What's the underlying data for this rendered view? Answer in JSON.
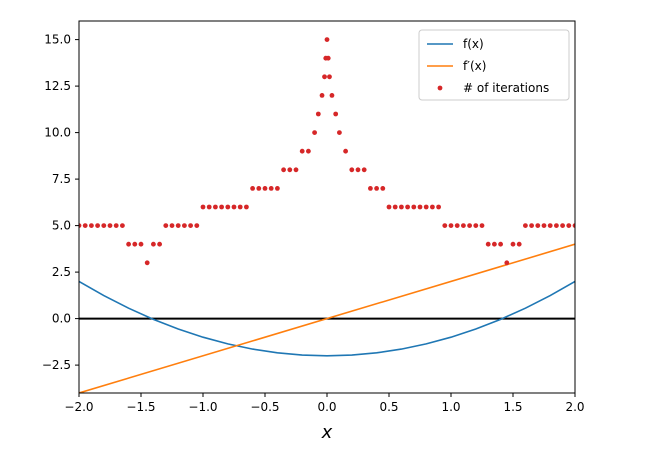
{
  "chart_data": {
    "type": "line",
    "title": "",
    "xlabel": "x",
    "ylabel": "",
    "xlim": [
      -2.0,
      2.0
    ],
    "ylim": [
      -4.0,
      16.0
    ],
    "x_ticks": [
      -2.0,
      -1.5,
      -1.0,
      -0.5,
      0.0,
      0.5,
      1.0,
      1.5,
      2.0
    ],
    "x_tick_labels": [
      "−2.0",
      "−1.5",
      "−1.0",
      "−0.5",
      "0.0",
      "0.5",
      "1.0",
      "1.5",
      "2.0"
    ],
    "y_ticks": [
      -2.5,
      0.0,
      2.5,
      5.0,
      7.5,
      10.0,
      12.5,
      15.0
    ],
    "y_tick_labels": [
      "−2.5",
      "0.0",
      "2.5",
      "5.0",
      "7.5",
      "10.0",
      "12.5",
      "15.0"
    ],
    "grid": false,
    "legend_position": "top-right",
    "legend": [
      "f(x)",
      "f′(x)",
      "# of iterations"
    ],
    "series": [
      {
        "name": "f(x)",
        "kind": "line",
        "color": "#1f77b4",
        "x": [
          -2.0,
          -1.8,
          -1.6,
          -1.4,
          -1.2,
          -1.0,
          -0.8,
          -0.6,
          -0.4,
          -0.2,
          0.0,
          0.2,
          0.4,
          0.6,
          0.8,
          1.0,
          1.2,
          1.4,
          1.6,
          1.8,
          2.0
        ],
        "y": [
          2.0,
          1.24,
          0.56,
          -0.04,
          -0.56,
          -1.0,
          -1.36,
          -1.64,
          -1.84,
          -1.96,
          -2.0,
          -1.96,
          -1.84,
          -1.64,
          -1.36,
          -1.0,
          -0.56,
          -0.04,
          0.56,
          1.24,
          2.0
        ]
      },
      {
        "name": "f′(x)",
        "kind": "line",
        "color": "#ff7f0e",
        "x": [
          -2.0,
          2.0
        ],
        "y": [
          -4.0,
          4.0
        ]
      },
      {
        "name": "# of iterations",
        "kind": "scatter",
        "color": "#d62728",
        "x": [
          -2.0,
          -1.95,
          -1.9,
          -1.85,
          -1.8,
          -1.75,
          -1.7,
          -1.65,
          -1.6,
          -1.55,
          -1.5,
          -1.45,
          -1.4,
          -1.35,
          -1.3,
          -1.25,
          -1.2,
          -1.15,
          -1.1,
          -1.05,
          -1.0,
          -0.95,
          -0.9,
          -0.85,
          -0.8,
          -0.75,
          -0.7,
          -0.65,
          -0.6,
          -0.55,
          -0.5,
          -0.45,
          -0.4,
          -0.35,
          -0.3,
          -0.25,
          -0.2,
          -0.15,
          -0.1,
          -0.07,
          -0.04,
          -0.02,
          -0.01,
          0.0,
          0.01,
          0.02,
          0.04,
          0.07,
          0.1,
          0.15,
          0.2,
          0.25,
          0.3,
          0.35,
          0.4,
          0.45,
          0.5,
          0.55,
          0.6,
          0.65,
          0.7,
          0.75,
          0.8,
          0.85,
          0.9,
          0.95,
          1.0,
          1.05,
          1.1,
          1.15,
          1.2,
          1.25,
          1.3,
          1.35,
          1.4,
          1.45,
          1.5,
          1.55,
          1.6,
          1.65,
          1.7,
          1.75,
          1.8,
          1.85,
          1.9,
          1.95,
          2.0
        ],
        "y": [
          5,
          5,
          5,
          5,
          5,
          5,
          5,
          5,
          4,
          4,
          4,
          3,
          4,
          4,
          5,
          5,
          5,
          5,
          5,
          5,
          6,
          6,
          6,
          6,
          6,
          6,
          6,
          6,
          7,
          7,
          7,
          7,
          7,
          8,
          8,
          8,
          9,
          9,
          10,
          11,
          12,
          13,
          14,
          15,
          14,
          13,
          12,
          11,
          10,
          9,
          8,
          8,
          8,
          7,
          7,
          7,
          6,
          6,
          6,
          6,
          6,
          6,
          6,
          6,
          6,
          5,
          5,
          5,
          5,
          5,
          5,
          5,
          4,
          4,
          4,
          3,
          4,
          4,
          5,
          5,
          5,
          5,
          5,
          5,
          5,
          5,
          5
        ]
      }
    ],
    "reference_lines": [
      {
        "orientation": "horizontal",
        "y": 0.0,
        "color": "#000000"
      }
    ]
  }
}
